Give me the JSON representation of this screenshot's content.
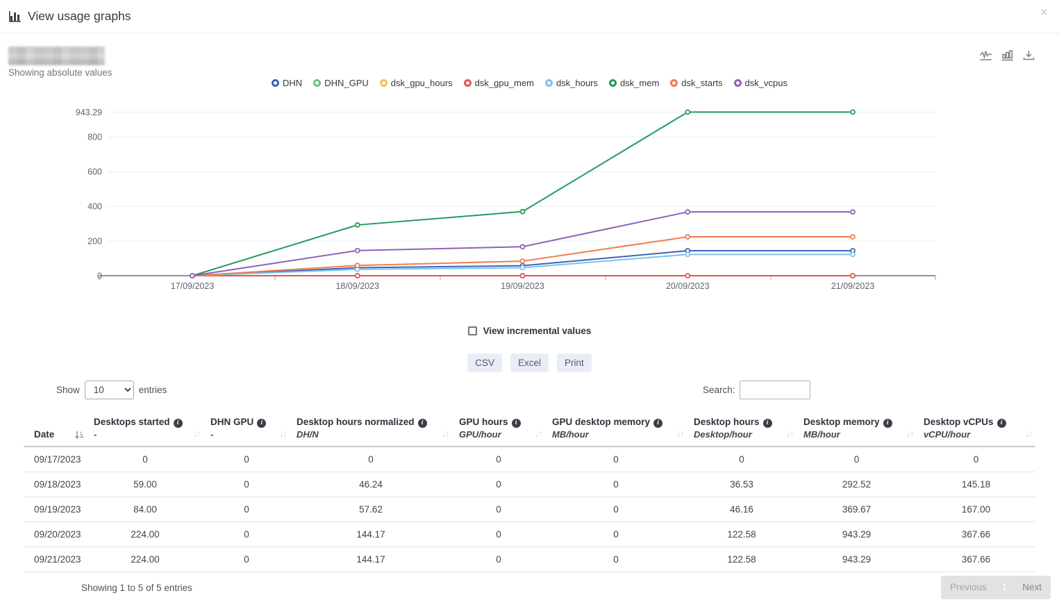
{
  "header": {
    "title": "View usage graphs"
  },
  "icons": {
    "header": "bar-chart-icon",
    "close": {
      "name": "close-icon",
      "glyph": "×"
    },
    "toolbar": [
      "line-chart-icon",
      "bar-chart-icon",
      "download-icon"
    ],
    "info": {
      "name": "info-icon",
      "glyph": "i"
    },
    "sort_inactive_glyph": "↓↑"
  },
  "view": {
    "mode_label": "Showing absolute values"
  },
  "chart_data": {
    "type": "line",
    "x": [
      "17/09/2023",
      "18/09/2023",
      "19/09/2023",
      "20/09/2023",
      "21/09/2023"
    ],
    "series": [
      {
        "name": "DHN",
        "color": "#3d63b7",
        "values": [
          0,
          46.24,
          57.62,
          144.17,
          144.17
        ]
      },
      {
        "name": "DHN_GPU",
        "color": "#72c175",
        "values": [
          0,
          0,
          0,
          0,
          0
        ]
      },
      {
        "name": "dsk_gpu_hours",
        "color": "#efc24a",
        "values": [
          0,
          0,
          0,
          0,
          0
        ]
      },
      {
        "name": "dsk_gpu_mem",
        "color": "#e5534f",
        "values": [
          0,
          0,
          0,
          0,
          0
        ]
      },
      {
        "name": "dsk_hours",
        "color": "#7ac4e8",
        "values": [
          0,
          36.53,
          46.16,
          122.58,
          122.58
        ]
      },
      {
        "name": "dsk_mem",
        "color": "#229c5d",
        "values": [
          0,
          292.52,
          369.67,
          943.29,
          943.29
        ]
      },
      {
        "name": "dsk_starts",
        "color": "#f37b4b",
        "values": [
          0,
          59.0,
          84.0,
          224.0,
          224.0
        ]
      },
      {
        "name": "dsk_vcpus",
        "color": "#8e60b7",
        "values": [
          0,
          145.18,
          167.0,
          367.66,
          367.66
        ]
      }
    ],
    "yticks": [
      943.29,
      800,
      600,
      400,
      200,
      0
    ],
    "ylim": [
      0,
      943.29
    ],
    "xlabel": "",
    "ylabel": "",
    "grid": true,
    "legend_position": "top"
  },
  "incremental": {
    "label": "View incremental values",
    "checked": false
  },
  "export_buttons": [
    "CSV",
    "Excel",
    "Print"
  ],
  "table_controls": {
    "show_label": "Show",
    "page_length": "10",
    "entries_label": "entries",
    "search_label": "Search:",
    "search_value": ""
  },
  "table": {
    "columns": [
      {
        "title": "Date",
        "subtitle": "",
        "info": false,
        "sort": "asc"
      },
      {
        "title": "Desktops started",
        "subtitle": "-",
        "info": true,
        "sort": "none"
      },
      {
        "title": "DHN GPU",
        "subtitle": "-",
        "info": true,
        "sort": "none"
      },
      {
        "title": "Desktop hours normalized",
        "subtitle": "DH/N",
        "info": true,
        "sort": "none"
      },
      {
        "title": "GPU hours",
        "subtitle": "GPU/hour",
        "info": true,
        "sort": "none"
      },
      {
        "title": "GPU desktop memory",
        "subtitle": "MB/hour",
        "info": true,
        "sort": "none"
      },
      {
        "title": "Desktop hours",
        "subtitle": "Desktop/hour",
        "info": true,
        "sort": "none"
      },
      {
        "title": "Desktop memory",
        "subtitle": "MB/hour",
        "info": true,
        "sort": "none"
      },
      {
        "title": "Desktop vCPUs",
        "subtitle": "vCPU/hour",
        "info": true,
        "sort": "none"
      }
    ],
    "rows": [
      [
        "09/17/2023",
        "0",
        "0",
        "0",
        "0",
        "0",
        "0",
        "0",
        "0"
      ],
      [
        "09/18/2023",
        "59.00",
        "0",
        "46.24",
        "0",
        "0",
        "36.53",
        "292.52",
        "145.18"
      ],
      [
        "09/19/2023",
        "84.00",
        "0",
        "57.62",
        "0",
        "0",
        "46.16",
        "369.67",
        "167.00"
      ],
      [
        "09/20/2023",
        "224.00",
        "0",
        "144.17",
        "0",
        "0",
        "122.58",
        "943.29",
        "367.66"
      ],
      [
        "09/21/2023",
        "224.00",
        "0",
        "144.17",
        "0",
        "0",
        "122.58",
        "943.29",
        "367.66"
      ]
    ]
  },
  "pagination": {
    "info": "Showing 1 to 5 of 5 entries",
    "previous_label": "Previous",
    "page": "1",
    "next_label": "Next"
  }
}
